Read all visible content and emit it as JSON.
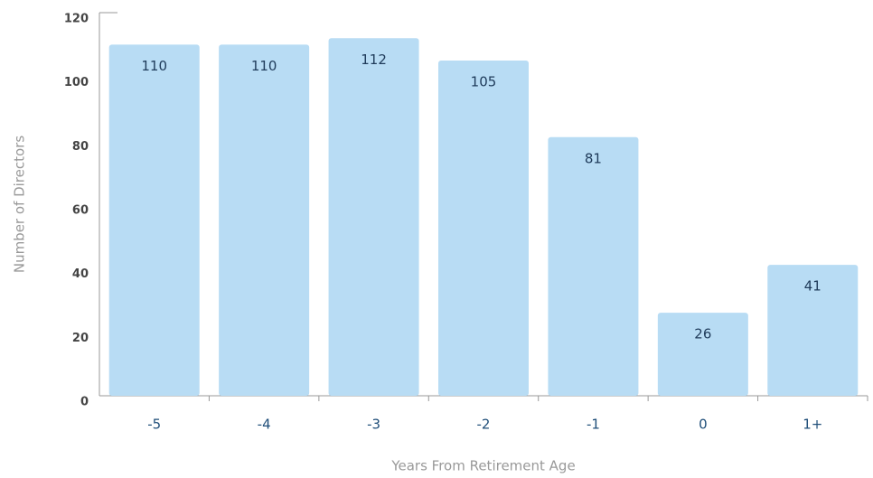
{
  "chart_data": {
    "type": "bar",
    "categories": [
      "-5",
      "-4",
      "-3",
      "-2",
      "-1",
      "0",
      "1+"
    ],
    "values": [
      110,
      110,
      112,
      105,
      81,
      26,
      41
    ],
    "color": "#b8dcf4",
    "xlabel": "Years From Retirement Age",
    "ylabel": "Number of Directors",
    "ylim": [
      0,
      120
    ],
    "yticks": [
      0,
      20,
      40,
      60,
      80,
      100,
      120
    ]
  }
}
